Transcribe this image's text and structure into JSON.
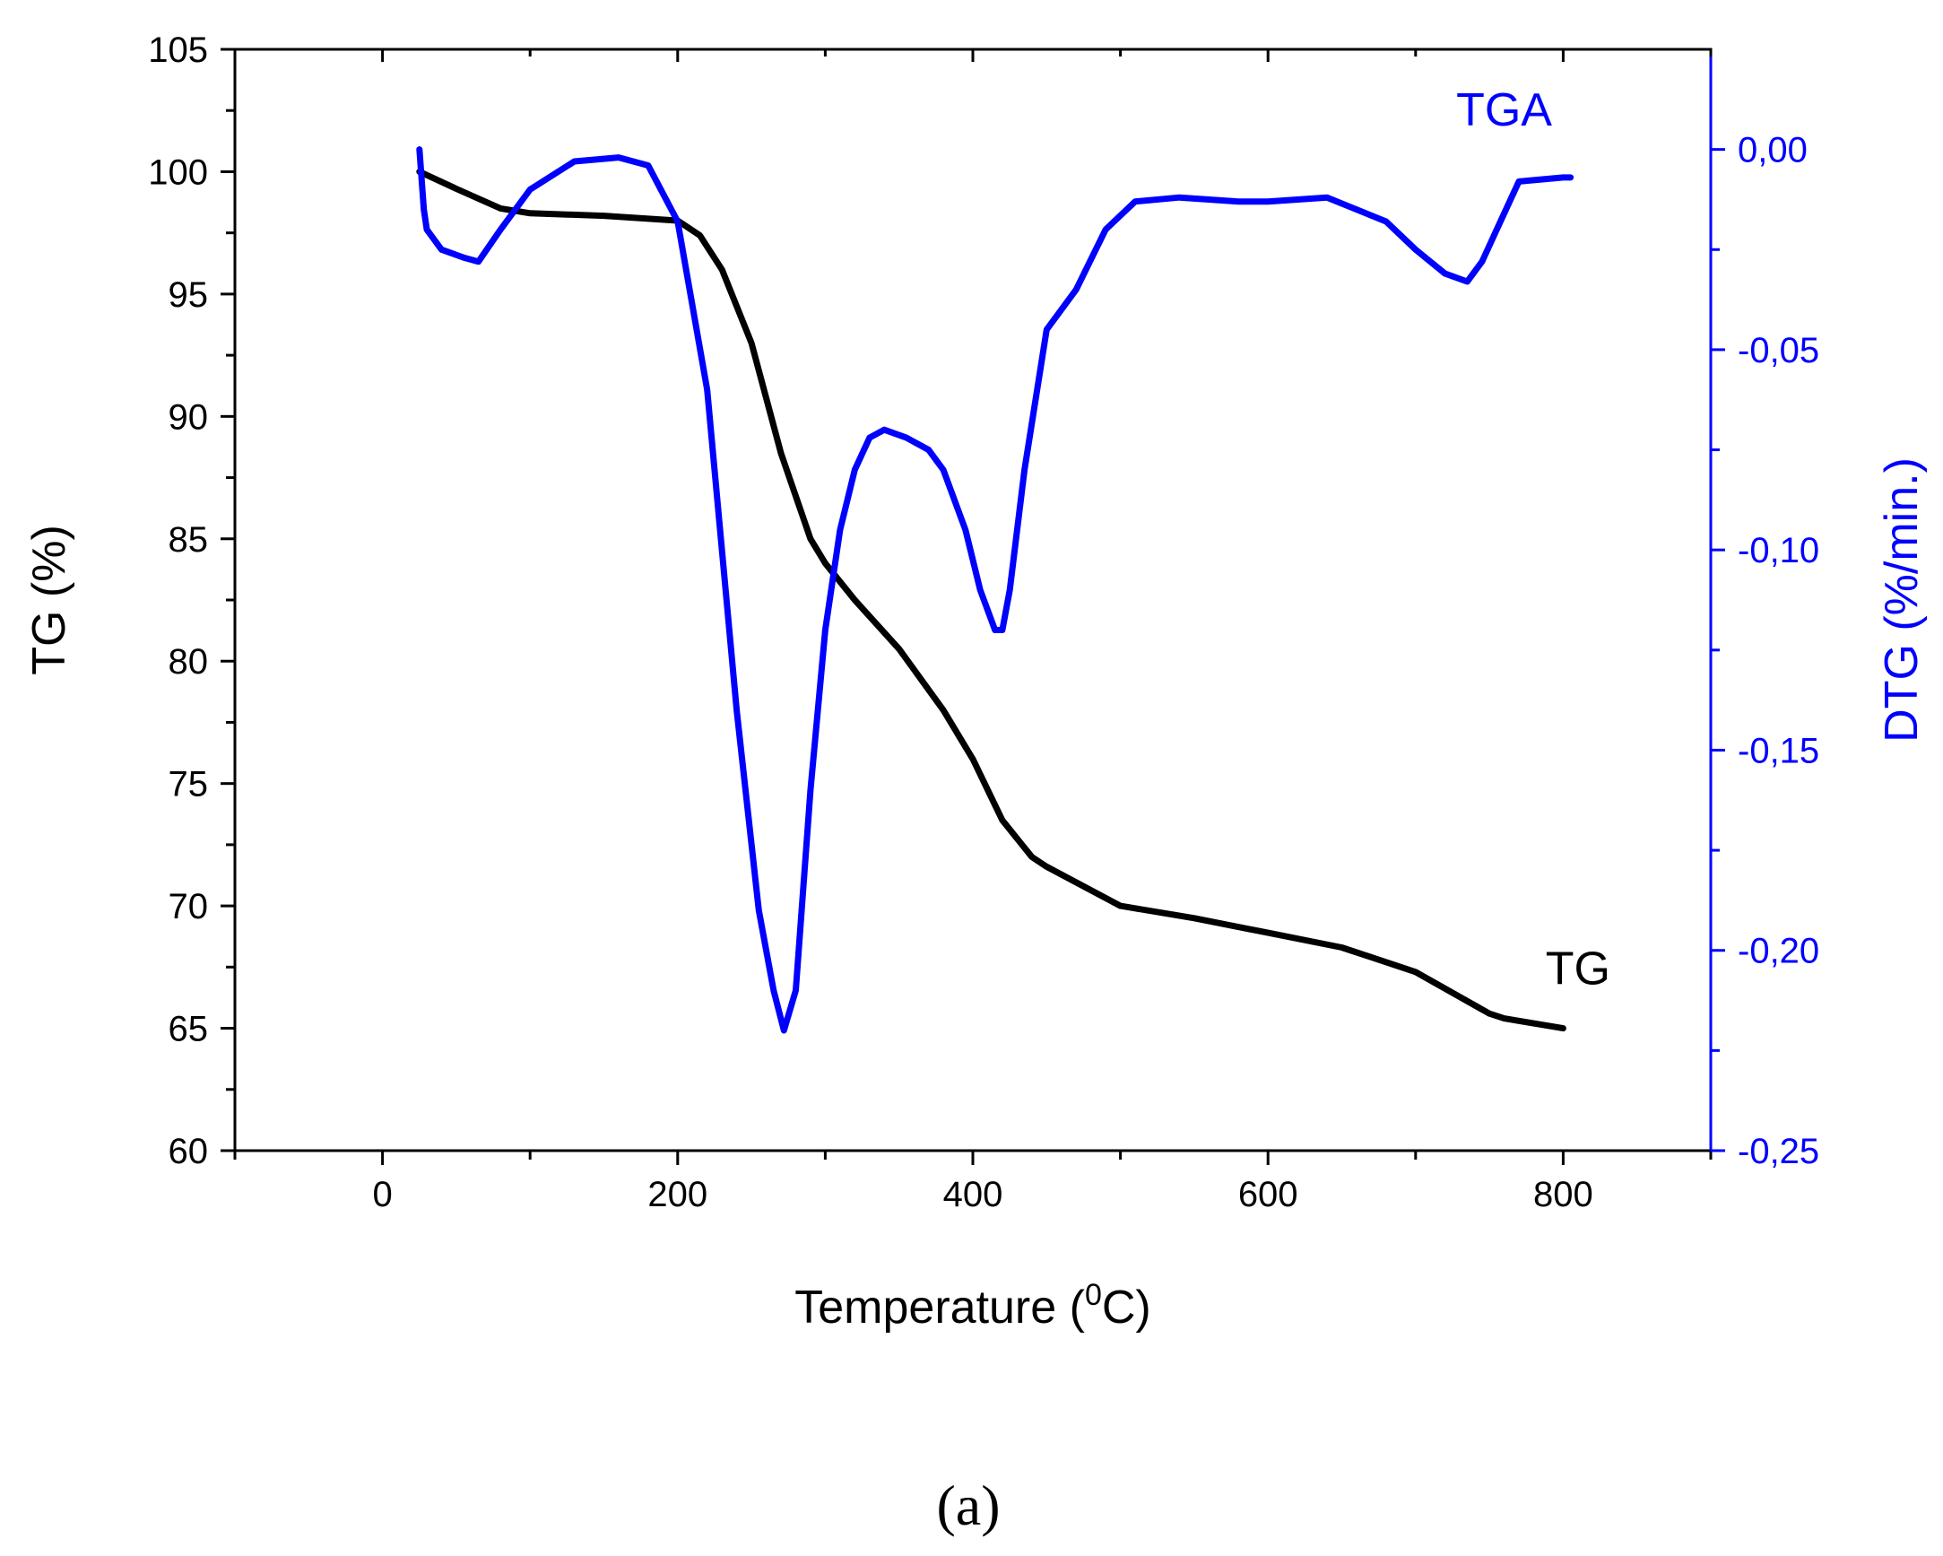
{
  "chart_data": {
    "type": "line",
    "xlabel_main": "Temperature (",
    "xlabel_sup": "0",
    "xlabel_tail": "C)",
    "ylabel_left": "TG (%)",
    "ylabel_right": "DTG (%/min.)",
    "panel_label": "(a)",
    "xlim": [
      -100,
      900
    ],
    "ylim_left": [
      60,
      105
    ],
    "ylim_right": [
      -0.25,
      0.025
    ],
    "x_ticks": [
      "0",
      "200",
      "400",
      "600",
      "800"
    ],
    "x_tick_values": [
      0,
      200,
      400,
      600,
      800
    ],
    "y_left_ticks": [
      "60",
      "65",
      "70",
      "75",
      "80",
      "85",
      "90",
      "95",
      "100",
      "105"
    ],
    "y_left_tick_values": [
      60,
      65,
      70,
      75,
      80,
      85,
      90,
      95,
      100,
      105
    ],
    "y_right_ticks": [
      "-0,25",
      "-0,20",
      "-0,15",
      "-0,10",
      "-0,05",
      "0,00"
    ],
    "y_right_tick_values": [
      -0.25,
      -0.2,
      -0.15,
      -0.1,
      -0.05,
      0.0
    ],
    "colors": {
      "tg": "#000000",
      "dtg": "#0000ff",
      "axes": "#000000",
      "right_axis": "#0000ff"
    },
    "series": [
      {
        "name": "TG",
        "axis": "left",
        "x": [
          25,
          50,
          80,
          100,
          150,
          200,
          215,
          230,
          250,
          270,
          290,
          300,
          320,
          350,
          380,
          400,
          420,
          440,
          450,
          500,
          550,
          600,
          650,
          700,
          750,
          760,
          800
        ],
        "y": [
          100,
          99.3,
          98.5,
          98.3,
          98.2,
          98.0,
          97.4,
          96.0,
          93.0,
          88.5,
          85.0,
          84.0,
          82.5,
          80.5,
          78.0,
          76.0,
          73.5,
          72.0,
          71.6,
          70.0,
          69.5,
          68.9,
          68.3,
          67.3,
          65.6,
          65.4,
          65.0
        ]
      },
      {
        "name": "TGA",
        "axis": "right",
        "x": [
          25,
          28,
          30,
          40,
          55,
          65,
          80,
          100,
          130,
          160,
          180,
          200,
          220,
          240,
          255,
          265,
          272,
          280,
          290,
          300,
          310,
          320,
          330,
          340,
          355,
          370,
          380,
          395,
          405,
          415,
          420,
          425,
          435,
          450,
          470,
          490,
          510,
          540,
          580,
          600,
          640,
          680,
          700,
          720,
          735,
          745,
          755,
          770,
          800,
          805
        ],
        "y": [
          0.0,
          -0.015,
          -0.02,
          -0.025,
          -0.027,
          -0.028,
          -0.02,
          -0.01,
          -0.003,
          -0.002,
          -0.004,
          -0.018,
          -0.06,
          -0.14,
          -0.19,
          -0.21,
          -0.22,
          -0.21,
          -0.16,
          -0.12,
          -0.095,
          -0.08,
          -0.072,
          -0.07,
          -0.072,
          -0.075,
          -0.08,
          -0.095,
          -0.11,
          -0.12,
          -0.12,
          -0.11,
          -0.08,
          -0.045,
          -0.035,
          -0.02,
          -0.013,
          -0.012,
          -0.013,
          -0.013,
          -0.012,
          -0.018,
          -0.025,
          -0.031,
          -0.033,
          -0.028,
          -0.02,
          -0.008,
          -0.007,
          -0.007
        ]
      }
    ],
    "annotations": [
      {
        "text": "TG",
        "x": 810,
        "y": 66.8,
        "axis": "left"
      },
      {
        "text": "TGA",
        "x": 760,
        "y": 0.006,
        "axis": "right"
      }
    ]
  }
}
